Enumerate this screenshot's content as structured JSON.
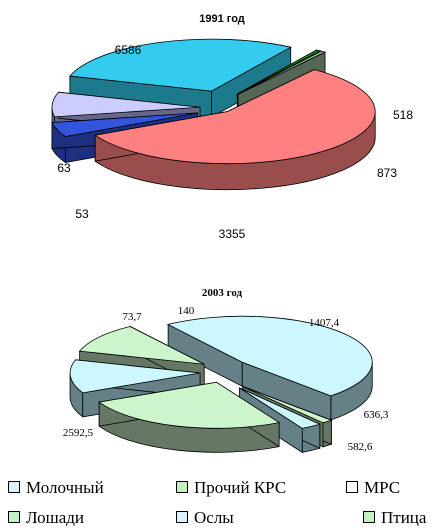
{
  "legend": [
    {
      "label": "Молочный",
      "color": "#d9f3ff"
    },
    {
      "label": "Прочий КРС",
      "color": "#c4f0c4"
    },
    {
      "label": "МРС",
      "color": "#ffffff"
    },
    {
      "label": "Лошади",
      "color": "#c4f0c4"
    },
    {
      "label": "Ослы",
      "color": "#d9f3ff"
    },
    {
      "label": "Птица",
      "color": "#c4f0c4"
    }
  ],
  "chart_data": [
    {
      "type": "pie",
      "title": "1991 год",
      "slices": [
        {
          "value": 6586,
          "label": "6586",
          "color": "#ff8080",
          "side": "#9a4d4d"
        },
        {
          "value": 518,
          "label": "518",
          "color": "#3355dd",
          "side": "#1d2f80"
        },
        {
          "value": 873,
          "label": "873",
          "color": "#ccccff",
          "side": "#666688"
        },
        {
          "value": 3355,
          "label": "3355",
          "color": "#33ccee",
          "side": "#1d7a8c"
        },
        {
          "value": 53,
          "label": "53",
          "color": "#00a000",
          "side": "#006000"
        },
        {
          "value": 63,
          "label": "63",
          "color": "#88aa88",
          "side": "#556655"
        }
      ]
    },
    {
      "type": "pie",
      "title": "2003 год",
      "slices": [
        {
          "value": 1407.4,
          "label": "1407,4",
          "color": "#ccf5cc",
          "side": "#667766"
        },
        {
          "value": 636.3,
          "label": "636,3",
          "color": "#ccf7ff",
          "side": "#668088"
        },
        {
          "value": 582.6,
          "label": "582,6",
          "color": "#ccf5cc",
          "side": "#667766"
        },
        {
          "value": 2592.5,
          "label": "2592,5",
          "color": "#ccf7ff",
          "side": "#668088"
        },
        {
          "value": 73.7,
          "label": "73,7",
          "color": "#ccf5cc",
          "side": "#667766"
        },
        {
          "value": 140,
          "label": "140",
          "color": "#ccf7ff",
          "side": "#668088"
        }
      ]
    }
  ]
}
